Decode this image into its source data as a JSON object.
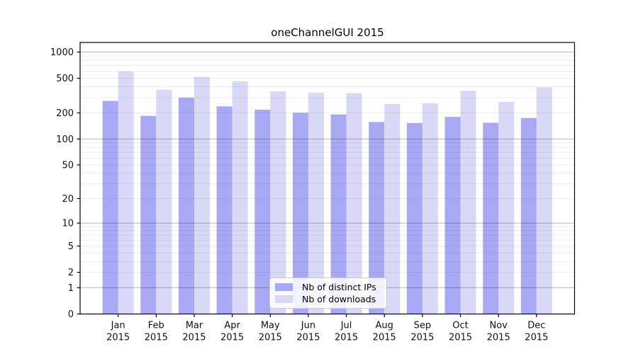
{
  "title": "oneChannelGUI 2015",
  "chart_data": {
    "type": "bar",
    "title": "oneChannelGUI 2015",
    "categories": [
      "Jan",
      "Feb",
      "Mar",
      "Apr",
      "May",
      "Jun",
      "Jul",
      "Aug",
      "Sep",
      "Oct",
      "Nov",
      "Dec"
    ],
    "category_year": "2015",
    "series": [
      {
        "name": "Nb of distinct IPs",
        "color": "#a8a8f5",
        "values": [
          275,
          185,
          300,
          238,
          218,
          201,
          192,
          157,
          153,
          180,
          154,
          175
        ]
      },
      {
        "name": "Nb of downloads",
        "color": "#d9d9f7",
        "values": [
          600,
          370,
          520,
          460,
          355,
          342,
          338,
          253,
          258,
          360,
          268,
          395
        ]
      }
    ],
    "yscale": "log1p",
    "yticks": [
      0,
      1,
      2,
      5,
      10,
      20,
      50,
      100,
      200,
      500,
      1000
    ],
    "ylim": [
      0,
      1290
    ],
    "xlabel": "",
    "ylabel": "",
    "grid": "horizontal",
    "legend_position": "inside-bottom-center",
    "colors": {
      "axis": "#000000",
      "grid_major": "rgba(0,0,0,0.28)",
      "grid_minor": "rgba(0,0,0,0.07)",
      "background": "#ffffff"
    }
  }
}
